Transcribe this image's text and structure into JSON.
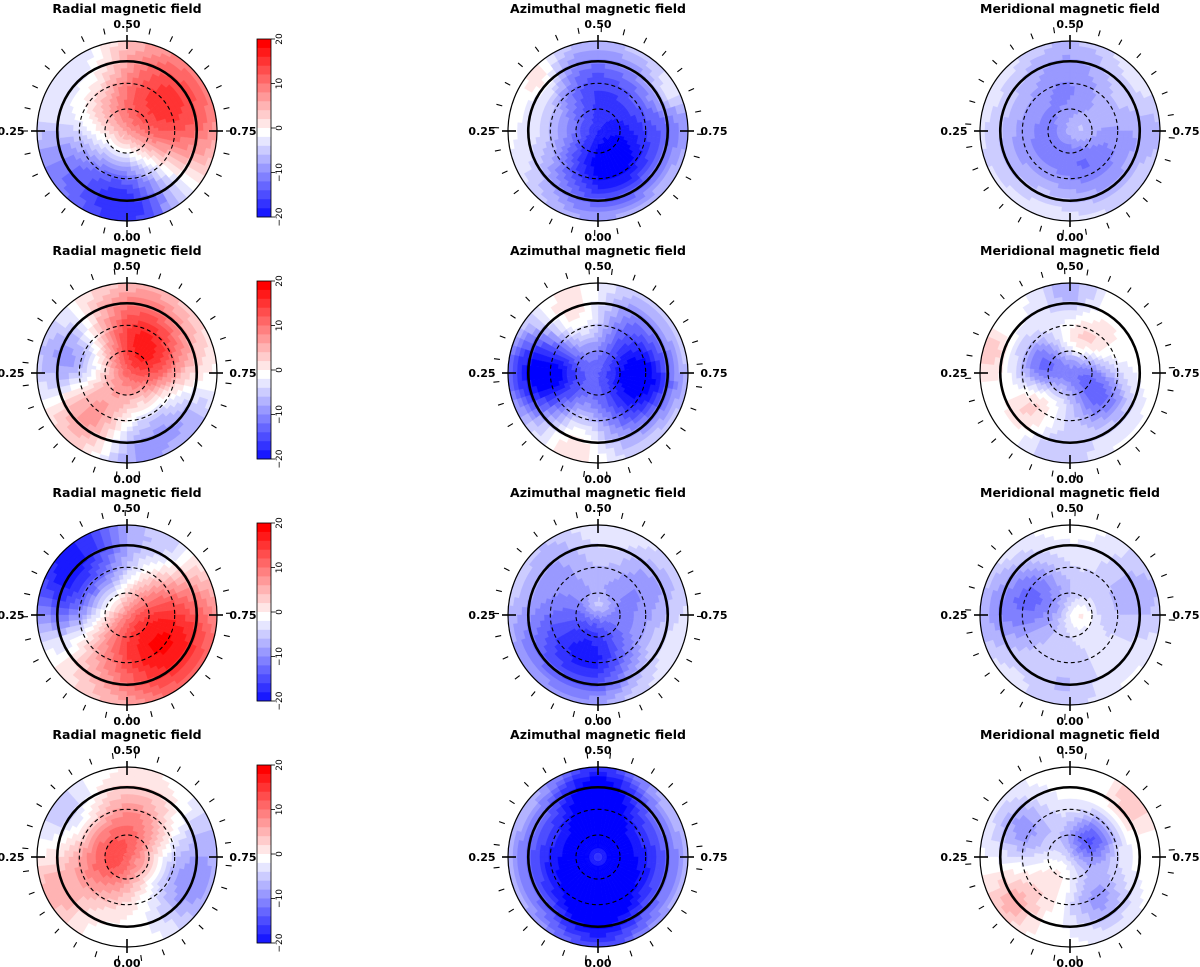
{
  "figure": {
    "rows": [
      {
        "panels": [
          {
            "title": "Radial magnetic field",
            "phase_labels": {
              "top": "0.50",
              "left": "0.25",
              "right": "0.75",
              "bottom": "0.00"
            },
            "blobs": [
              {
                "theta": 0.55,
                "r": 0.45,
                "spread": 0.55,
                "value": 17
              },
              {
                "theta": 4.71,
                "r": 0.8,
                "spread": 0.45,
                "value": -18
              },
              {
                "theta": 3.6,
                "r": 0.85,
                "spread": 0.4,
                "value": -8
              },
              {
                "theta": 2.2,
                "r": 0.85,
                "spread": 0.3,
                "value": -5
              }
            ]
          },
          {
            "title": "Azimuthal magnetic field",
            "phase_labels": {
              "top": "0.50",
              "left": "0.25",
              "right": "0.75",
              "bottom": "0.00"
            },
            "blobs": [
              {
                "theta": 1.7,
                "r": 0.55,
                "spread": 0.35,
                "value": -10
              },
              {
                "theta": 5.2,
                "r": 0.45,
                "spread": 0.35,
                "value": -12
              },
              {
                "theta": 4.4,
                "r": 0.6,
                "spread": 0.4,
                "value": -8
              },
              {
                "theta": 0.3,
                "r": 0.4,
                "spread": 0.45,
                "value": -9
              },
              {
                "theta": 0.0,
                "r": 0.9,
                "spread": 0.25,
                "value": -4
              },
              {
                "theta": 2.4,
                "r": 0.85,
                "spread": 0.15,
                "value": 5
              },
              {
                "theta": 0.5,
                "r": 0.9,
                "spread": 0.15,
                "value": 4
              }
            ]
          },
          {
            "title": "Meridional magnetic field",
            "phase_labels": {
              "top": "0.50",
              "left": "0.25",
              "right": "0.75",
              "bottom": "0.00"
            },
            "blobs": [
              {
                "theta": 1.6,
                "r": 0.6,
                "spread": 0.4,
                "value": -8
              },
              {
                "theta": 3.5,
                "r": 0.45,
                "spread": 0.4,
                "value": -7
              },
              {
                "theta": 5.3,
                "r": 0.45,
                "spread": 0.35,
                "value": -9
              },
              {
                "theta": 0.0,
                "r": 0.1,
                "spread": 0.15,
                "value": 5
              },
              {
                "theta": 0.0,
                "r": 0.9,
                "spread": 0.3,
                "value": -5
              }
            ]
          }
        ]
      },
      {
        "panels": [
          {
            "title": "Radial magnetic field",
            "phase_labels": {
              "top": "0.50",
              "left": "0.25",
              "right": "0.75",
              "bottom": "0.00"
            },
            "blobs": [
              {
                "theta": 1.4,
                "r": 0.45,
                "spread": 0.4,
                "value": 14
              },
              {
                "theta": 0.1,
                "r": 0.25,
                "spread": 0.35,
                "value": 10
              },
              {
                "theta": 3.9,
                "r": 0.6,
                "spread": 0.3,
                "value": 10
              },
              {
                "theta": 2.9,
                "r": 0.55,
                "spread": 0.35,
                "value": -12
              },
              {
                "theta": 5.5,
                "r": 0.7,
                "spread": 0.35,
                "value": -9
              },
              {
                "theta": 4.8,
                "r": 0.95,
                "spread": 0.25,
                "value": -6
              }
            ]
          },
          {
            "title": "Azimuthal magnetic field",
            "phase_labels": {
              "top": "0.50",
              "left": "0.25",
              "right": "0.75",
              "bottom": "0.00"
            },
            "blobs": [
              {
                "theta": 3.14,
                "r": 0.6,
                "spread": 0.35,
                "value": -22
              },
              {
                "theta": 6.1,
                "r": 0.5,
                "spread": 0.3,
                "value": -18
              },
              {
                "theta": 1.0,
                "r": 0.55,
                "spread": 0.35,
                "value": -10
              },
              {
                "theta": 2.0,
                "r": 0.6,
                "spread": 0.28,
                "value": 7
              },
              {
                "theta": 4.5,
                "r": 0.75,
                "spread": 0.25,
                "value": 6
              },
              {
                "theta": 5.0,
                "r": 0.6,
                "spread": 0.3,
                "value": -8
              }
            ]
          },
          {
            "title": "Meridional magnetic field",
            "phase_labels": {
              "top": "0.50",
              "left": "0.25",
              "right": "0.75",
              "bottom": "0.00"
            },
            "blobs": [
              {
                "theta": 2.8,
                "r": 0.3,
                "spread": 0.22,
                "value": -12
              },
              {
                "theta": 0.2,
                "r": 0.15,
                "spread": 0.18,
                "value": -8
              },
              {
                "theta": 5.6,
                "r": 0.45,
                "spread": 0.22,
                "value": -11
              },
              {
                "theta": 1.2,
                "r": 0.35,
                "spread": 0.22,
                "value": 6
              },
              {
                "theta": 3.9,
                "r": 0.55,
                "spread": 0.2,
                "value": 5
              },
              {
                "theta": 2.9,
                "r": 0.95,
                "spread": 0.18,
                "value": 5
              },
              {
                "theta": 1.6,
                "r": 0.9,
                "spread": 0.25,
                "value": -6
              },
              {
                "theta": 4.6,
                "r": 0.9,
                "spread": 0.3,
                "value": -5
              }
            ]
          }
        ]
      },
      {
        "panels": [
          {
            "title": "Radial magnetic field",
            "phase_labels": {
              "top": "0.50",
              "left": "0.25",
              "right": "0.75",
              "bottom": "0.00"
            },
            "blobs": [
              {
                "theta": 5.6,
                "r": 0.45,
                "spread": 0.55,
                "value": 20
              },
              {
                "theta": 2.3,
                "r": 0.85,
                "spread": 0.5,
                "value": -18
              },
              {
                "theta": 3.0,
                "r": 0.7,
                "spread": 0.3,
                "value": -6
              },
              {
                "theta": 1.0,
                "r": 0.9,
                "spread": 0.25,
                "value": -5
              }
            ]
          },
          {
            "title": "Azimuthal magnetic field",
            "phase_labels": {
              "top": "0.50",
              "left": "0.25",
              "right": "0.75",
              "bottom": "0.00"
            },
            "blobs": [
              {
                "theta": 3.6,
                "r": 0.55,
                "spread": 0.45,
                "value": -11
              },
              {
                "theta": 4.7,
                "r": 0.55,
                "spread": 0.35,
                "value": -12
              },
              {
                "theta": 0.5,
                "r": 0.55,
                "spread": 0.35,
                "value": -8
              },
              {
                "theta": 1.5,
                "r": 0.1,
                "spread": 0.1,
                "value": 5
              },
              {
                "theta": 2.2,
                "r": 0.8,
                "spread": 0.3,
                "value": -5
              }
            ]
          },
          {
            "title": "Meridional magnetic field",
            "phase_labels": {
              "top": "0.50",
              "left": "0.25",
              "right": "0.75",
              "bottom": "0.00"
            },
            "blobs": [
              {
                "theta": 2.6,
                "r": 0.45,
                "spread": 0.3,
                "value": -9
              },
              {
                "theta": 3.2,
                "r": 0.8,
                "spread": 0.35,
                "value": -6
              },
              {
                "theta": 0.3,
                "r": 0.75,
                "spread": 0.4,
                "value": -6
              },
              {
                "theta": 0.0,
                "r": 0.1,
                "spread": 0.12,
                "value": 5
              },
              {
                "theta": 4.6,
                "r": 0.8,
                "spread": 0.35,
                "value": -5
              }
            ]
          }
        ]
      },
      {
        "panels": [
          {
            "title": "Radial magnetic field",
            "phase_labels": {
              "top": "0.50",
              "left": "0.25",
              "right": "0.75",
              "bottom": "0.00"
            },
            "blobs": [
              {
                "theta": 3.5,
                "r": 0.2,
                "spread": 0.3,
                "value": 12
              },
              {
                "theta": 1.4,
                "r": 0.4,
                "spread": 0.3,
                "value": 8
              },
              {
                "theta": 3.6,
                "r": 0.95,
                "spread": 0.25,
                "value": 6
              },
              {
                "theta": 5.8,
                "r": 0.75,
                "spread": 0.3,
                "value": -8
              },
              {
                "theta": 0.2,
                "r": 0.95,
                "spread": 0.3,
                "value": -5
              },
              {
                "theta": 2.5,
                "r": 0.85,
                "spread": 0.25,
                "value": -5
              }
            ]
          },
          {
            "title": "Azimuthal magnetic field",
            "phase_labels": {
              "top": "0.50",
              "left": "0.25",
              "right": "0.75",
              "bottom": "0.00"
            },
            "blobs": [
              {
                "theta": 1.57,
                "r": 0.65,
                "spread": 0.4,
                "value": -22
              },
              {
                "theta": 4.71,
                "r": 0.55,
                "spread": 0.45,
                "value": -22
              },
              {
                "theta": 0.0,
                "r": 0.6,
                "spread": 0.35,
                "value": -10
              },
              {
                "theta": 3.14,
                "r": 0.6,
                "spread": 0.35,
                "value": -10
              },
              {
                "theta": 0.0,
                "r": 0.0,
                "spread": 0.08,
                "value": 5
              }
            ]
          },
          {
            "title": "Meridional magnetic field",
            "phase_labels": {
              "top": "0.50",
              "left": "0.25",
              "right": "0.75",
              "bottom": "0.00"
            },
            "blobs": [
              {
                "theta": 0.7,
                "r": 0.3,
                "spread": 0.2,
                "value": -13
              },
              {
                "theta": 2.6,
                "r": 0.6,
                "spread": 0.25,
                "value": -8
              },
              {
                "theta": 5.3,
                "r": 0.55,
                "spread": 0.25,
                "value": -8
              },
              {
                "theta": 3.8,
                "r": 0.8,
                "spread": 0.22,
                "value": 6
              },
              {
                "theta": 0.7,
                "r": 0.9,
                "spread": 0.2,
                "value": 5
              },
              {
                "theta": 4.3,
                "r": 0.3,
                "spread": 0.2,
                "value": 3
              }
            ]
          }
        ]
      }
    ],
    "colorbar": {
      "ticks": [
        "20",
        "10",
        "0",
        "−10",
        "−20"
      ],
      "vmin": -20,
      "vmax": 20,
      "levels": 20,
      "positive_color": "#ff0000",
      "negative_color": "#0000ff",
      "neutral_color": "#ffffff"
    }
  },
  "chart_data": {
    "type": "heatmap",
    "projection": "polar",
    "grid": "4 rows x 3 columns",
    "columns": [
      "Radial magnetic field",
      "Azimuthal magnetic field",
      "Meridional magnetic field"
    ],
    "rotation_phase_labels": [
      "0.00",
      "0.25",
      "0.50",
      "0.75"
    ],
    "colorbar_range": [
      -20,
      20
    ],
    "colorbar_ticks": [
      -20,
      -10,
      0,
      10,
      20
    ],
    "colormap": "blue (negative) - white (0) - red (positive)",
    "latitude_circles": [
      "equator (solid)",
      "30 deg (dashed)",
      "60 deg (dashed)"
    ]
  }
}
